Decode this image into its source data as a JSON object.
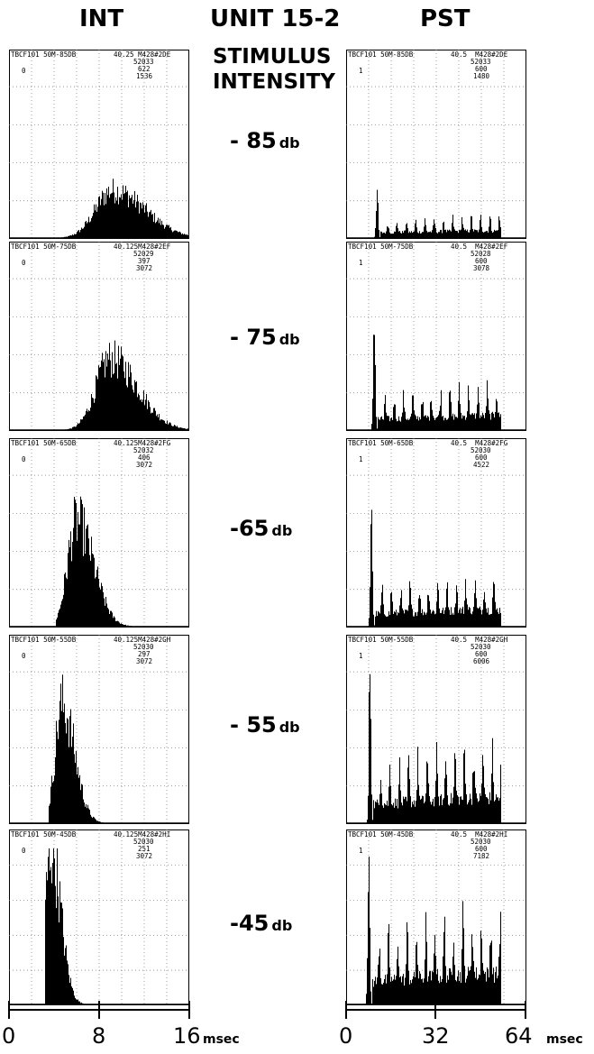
{
  "headers": {
    "left": "INT",
    "center": "UNIT 15-2",
    "right": "PST",
    "stimulus_line1": "STIMULUS",
    "stimulus_line2": "INTENSITY"
  },
  "intensities": [
    {
      "value": "- 85",
      "unit": "db"
    },
    {
      "value": "- 75",
      "unit": "db"
    },
    {
      "value": "-65",
      "unit": "db"
    },
    {
      "value": "- 55",
      "unit": "db"
    },
    {
      "value": "-45",
      "unit": "db"
    }
  ],
  "int_panels": [
    {
      "tag": "TBCF101 50M-85DB",
      "ref": "40.25 M428#2DE",
      "n1": "52033",
      "n2": "622",
      "n3": "1536",
      "flag": "0"
    },
    {
      "tag": "TBCF101 50M-75DB",
      "ref": "40.125M428#2EF",
      "n1": "52029",
      "n2": "397",
      "n3": "3072",
      "flag": "0"
    },
    {
      "tag": "TBCF101 50M-65DB",
      "ref": "40.125M428#2FG",
      "n1": "52032",
      "n2": "406",
      "n3": "3072",
      "flag": "0"
    },
    {
      "tag": "TBCF101 50M-55DB",
      "ref": "40.125M428#2GH",
      "n1": "52030",
      "n2": "297",
      "n3": "3072",
      "flag": "0"
    },
    {
      "tag": "TBCF101 50M-45DB",
      "ref": "40.125M428#2HI",
      "n1": "52030",
      "n2": "251",
      "n3": "3072",
      "flag": "0"
    }
  ],
  "pst_panels": [
    {
      "tag": "TBCF101 50M-85DB",
      "ref": "40.5  M428#2DE",
      "n1": "52033",
      "n2": "600",
      "n3": "1480",
      "flag": "1"
    },
    {
      "tag": "TBCF101 50M-75DB",
      "ref": "40.5  M428#2EF",
      "n1": "52028",
      "n2": "600",
      "n3": "3078",
      "flag": "1"
    },
    {
      "tag": "TBCF101 50M-65DB",
      "ref": "40.5  M428#2FG",
      "n1": "52030",
      "n2": "600",
      "n3": "4522",
      "flag": "1"
    },
    {
      "tag": "TBCF101 50M-55DB",
      "ref": "40.5  M428#2GH",
      "n1": "52030",
      "n2": "600",
      "n3": "6006",
      "flag": "1"
    },
    {
      "tag": "TBCF101 50M-45DB",
      "ref": "40.5  M428#2HI",
      "n1": "52030",
      "n2": "600",
      "n3": "7182",
      "flag": "1"
    }
  ],
  "axes": {
    "int_ticks": [
      "0",
      "8",
      "16"
    ],
    "pst_ticks": [
      "0",
      "32",
      "64"
    ],
    "unit": "msec"
  },
  "chart_data": [
    {
      "type": "bar",
      "group": "INT",
      "xlim": [
        0,
        16
      ],
      "ylim": [
        0,
        1
      ],
      "series": [
        {
          "intensity_db": -85,
          "peak_ms": 9.2,
          "spread_ms": 1.9,
          "peak": 0.28,
          "onset_ms": 4.0
        },
        {
          "intensity_db": -75,
          "peak_ms": 9.0,
          "spread_ms": 1.6,
          "peak": 0.42,
          "onset_ms": 4.5
        },
        {
          "intensity_db": -65,
          "peak_ms": 6.0,
          "spread_ms": 1.0,
          "peak": 0.62,
          "onset_ms": 4.2
        },
        {
          "intensity_db": -55,
          "peak_ms": 4.7,
          "spread_ms": 0.75,
          "peak": 0.7,
          "onset_ms": 3.5
        },
        {
          "intensity_db": -45,
          "peak_ms": 3.7,
          "spread_ms": 0.6,
          "peak": 1.0,
          "onset_ms": 3.2
        }
      ]
    },
    {
      "type": "bar",
      "group": "PST",
      "xlim": [
        0,
        64
      ],
      "ylim": [
        0,
        1
      ],
      "series": [
        {
          "intensity_db": -85,
          "first_peak_ms": 11,
          "first_peak": 0.28,
          "burst_period_ms": 3.3,
          "burst_level": 0.12,
          "end_ms": 55
        },
        {
          "intensity_db": -75,
          "first_peak_ms": 10,
          "first_peak": 0.72,
          "burst_period_ms": 3.3,
          "burst_level": 0.24,
          "end_ms": 55
        },
        {
          "intensity_db": -65,
          "first_peak_ms": 9,
          "first_peak": 0.78,
          "burst_period_ms": 3.3,
          "burst_level": 0.28,
          "end_ms": 55
        },
        {
          "intensity_db": -55,
          "first_peak_ms": 8.5,
          "first_peak": 1.0,
          "burst_period_ms": 3.3,
          "burst_level": 0.42,
          "end_ms": 55
        },
        {
          "intensity_db": -45,
          "first_peak_ms": 8,
          "first_peak": 1.0,
          "burst_period_ms": 3.3,
          "burst_level": 0.55,
          "end_ms": 55
        }
      ]
    }
  ]
}
